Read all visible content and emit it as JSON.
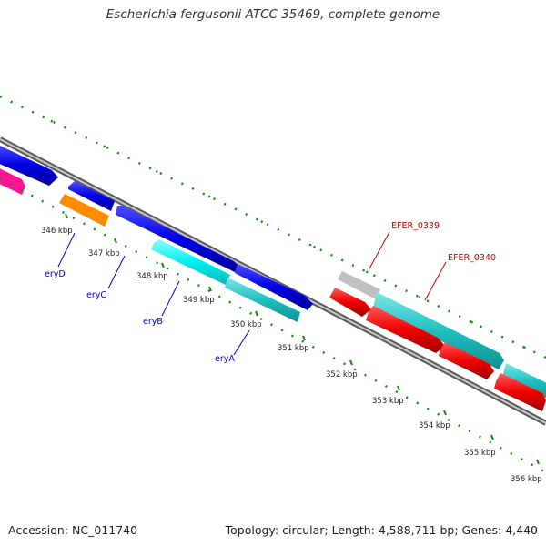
{
  "title": "Escherichia fergusonii ATCC 35469, complete genome",
  "footer": {
    "accession": "Accession: NC_011740",
    "topology": "Topology: circular; Length: 4,588,711 bp; Genes: 4,440"
  },
  "ticks": [
    "346 kbp",
    "347 kbp",
    "348 kbp",
    "349 kbp",
    "350 kbp",
    "351 kbp",
    "352 kbp",
    "353 kbp",
    "354 kbp",
    "355 kbp",
    "356 kbp"
  ],
  "gene_labels": [
    "eryD",
    "eryC",
    "eryB",
    "eryA",
    "EFER_0339",
    "EFER_0340"
  ],
  "colors": {
    "backbone": "#909090",
    "tick_green": "#138a13",
    "forward_blue": "#0000e6",
    "teal": "#20c0c0",
    "cyan": "#00f0f0",
    "red": "#f00000",
    "magenta": "#ff1493",
    "orange": "#ff8c00",
    "grey_gene": "#c0c0c0",
    "blue_label": "#0000cc",
    "red_label": "#cc0000"
  }
}
